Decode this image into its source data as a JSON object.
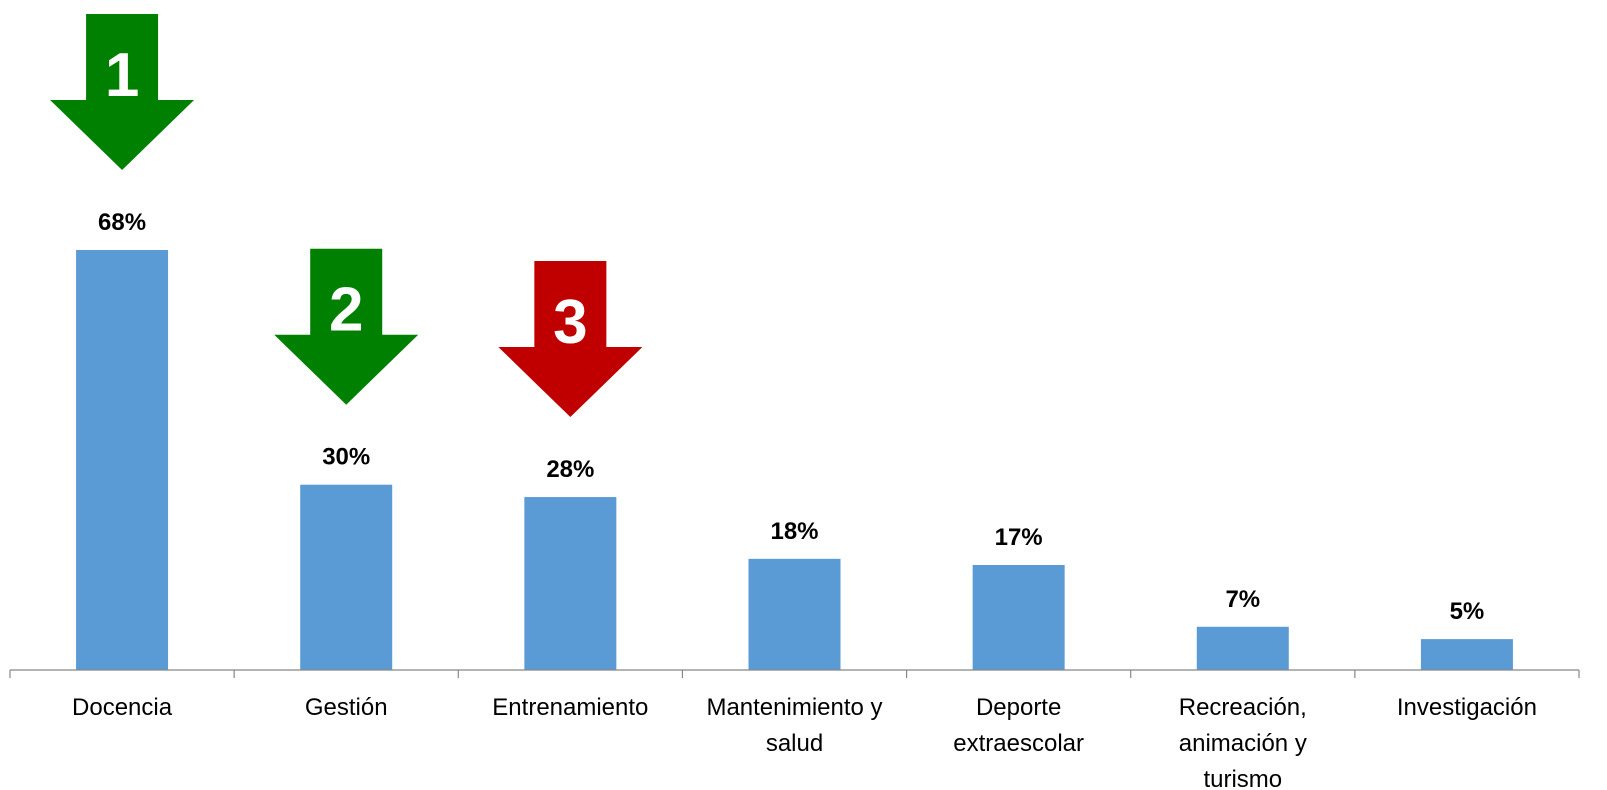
{
  "chart_data": {
    "type": "bar",
    "categories": [
      [
        "Docencia"
      ],
      [
        "Gestión"
      ],
      [
        "Entrenamiento"
      ],
      [
        "Mantenimiento y",
        "salud"
      ],
      [
        "Deporte",
        "extraescolar"
      ],
      [
        "Recreación,",
        "animación y",
        "turismo"
      ],
      [
        "Investigación"
      ]
    ],
    "values": [
      68,
      30,
      28,
      18,
      17,
      7,
      5
    ],
    "value_labels": [
      "68%",
      "30%",
      "28%",
      "18%",
      "17%",
      "7%",
      "5%"
    ],
    "ylim": [
      0,
      68
    ],
    "grid": false,
    "bar_color": "#5B9BD5",
    "annotations": [
      {
        "category_index": 0,
        "text": "1",
        "color": "#008000",
        "shape": "down-arrow"
      },
      {
        "category_index": 1,
        "text": "2",
        "color": "#008000",
        "shape": "down-arrow"
      },
      {
        "category_index": 2,
        "text": "3",
        "color": "#C00000",
        "shape": "down-arrow"
      }
    ]
  }
}
